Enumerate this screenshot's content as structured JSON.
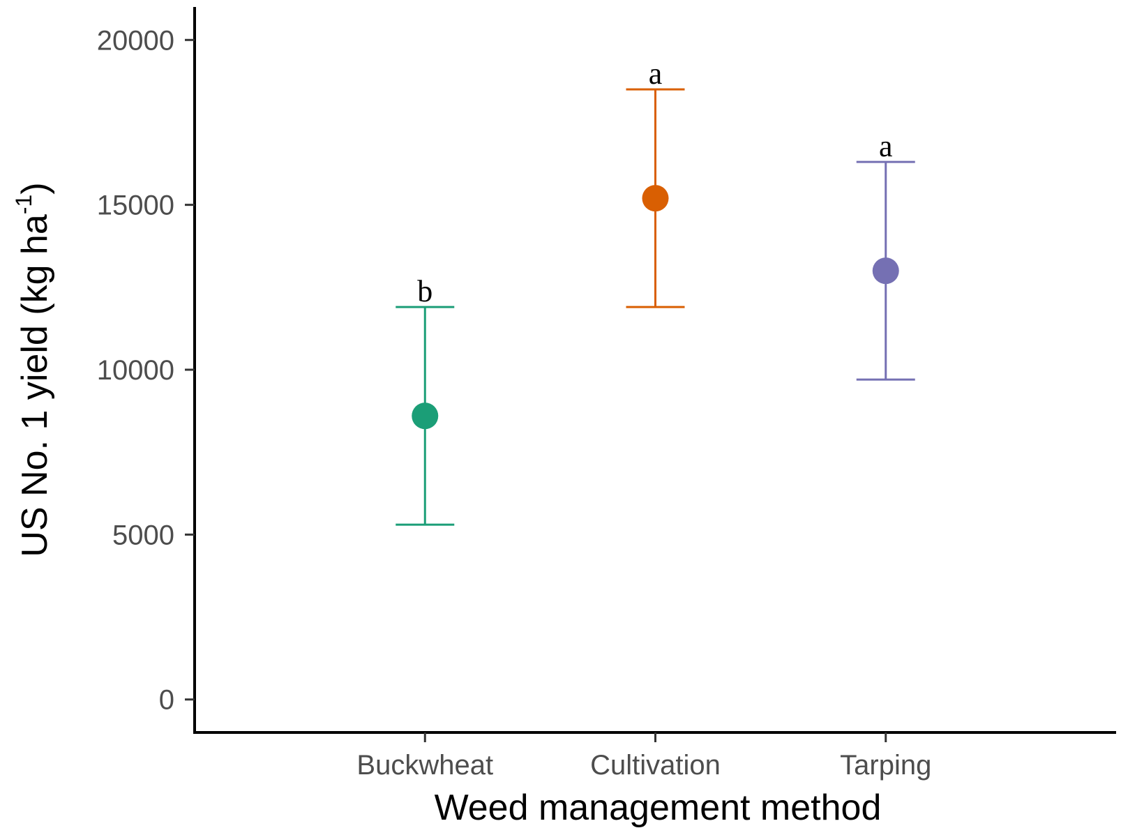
{
  "chart_data": {
    "type": "scatter",
    "xlabel": "Weed management method",
    "ylabel": {
      "main": "US No. 1 yield (kg ha",
      "superscript": "-1",
      "close": ")"
    },
    "categories": [
      "Buckwheat",
      "Cultivation",
      "Tarping"
    ],
    "points": [
      {
        "category": "Buckwheat",
        "mean": 8600,
        "lower": 5300,
        "upper": 11900,
        "label": "b",
        "color": "#1b9e77"
      },
      {
        "category": "Cultivation",
        "mean": 15200,
        "lower": 11900,
        "upper": 18500,
        "label": "a",
        "color": "#d95f02"
      },
      {
        "category": "Tarping",
        "mean": 13000,
        "lower": 9700,
        "upper": 16300,
        "label": "a",
        "color": "#7570b3"
      }
    ],
    "yticks": [
      0,
      5000,
      10000,
      15000,
      20000
    ],
    "ytick_labels": [
      "0",
      "5000",
      "10000",
      "15000",
      "20000"
    ],
    "ylim": [
      -1000,
      21000
    ],
    "grid": false,
    "legend": "none"
  }
}
